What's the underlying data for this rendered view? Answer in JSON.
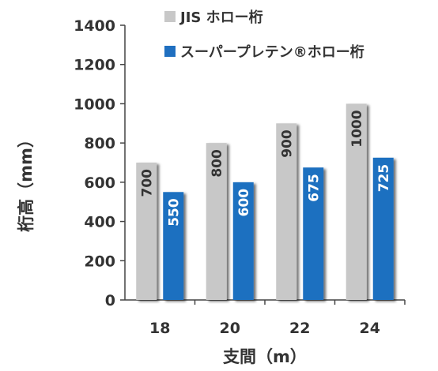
{
  "chart_data": {
    "type": "bar",
    "title": "",
    "xlabel": "支間（m）",
    "ylabel": "桁高（mm）",
    "categories": [
      "18",
      "20",
      "22",
      "24"
    ],
    "ylim": [
      0,
      1400
    ],
    "yticks": [
      0,
      200,
      400,
      600,
      800,
      1000,
      1200,
      1400
    ],
    "grid": false,
    "legend_position": "top-right",
    "series": [
      {
        "name": "JIS ホロー桁",
        "values": [
          700,
          800,
          900,
          1000
        ],
        "color": "#c8c8c8",
        "label_color": "#333333"
      },
      {
        "name": "スーパープレテン®ホロー桁",
        "values": [
          550,
          600,
          675,
          725
        ],
        "color": "#1f6fc0",
        "label_color": "#ffffff"
      }
    ]
  }
}
